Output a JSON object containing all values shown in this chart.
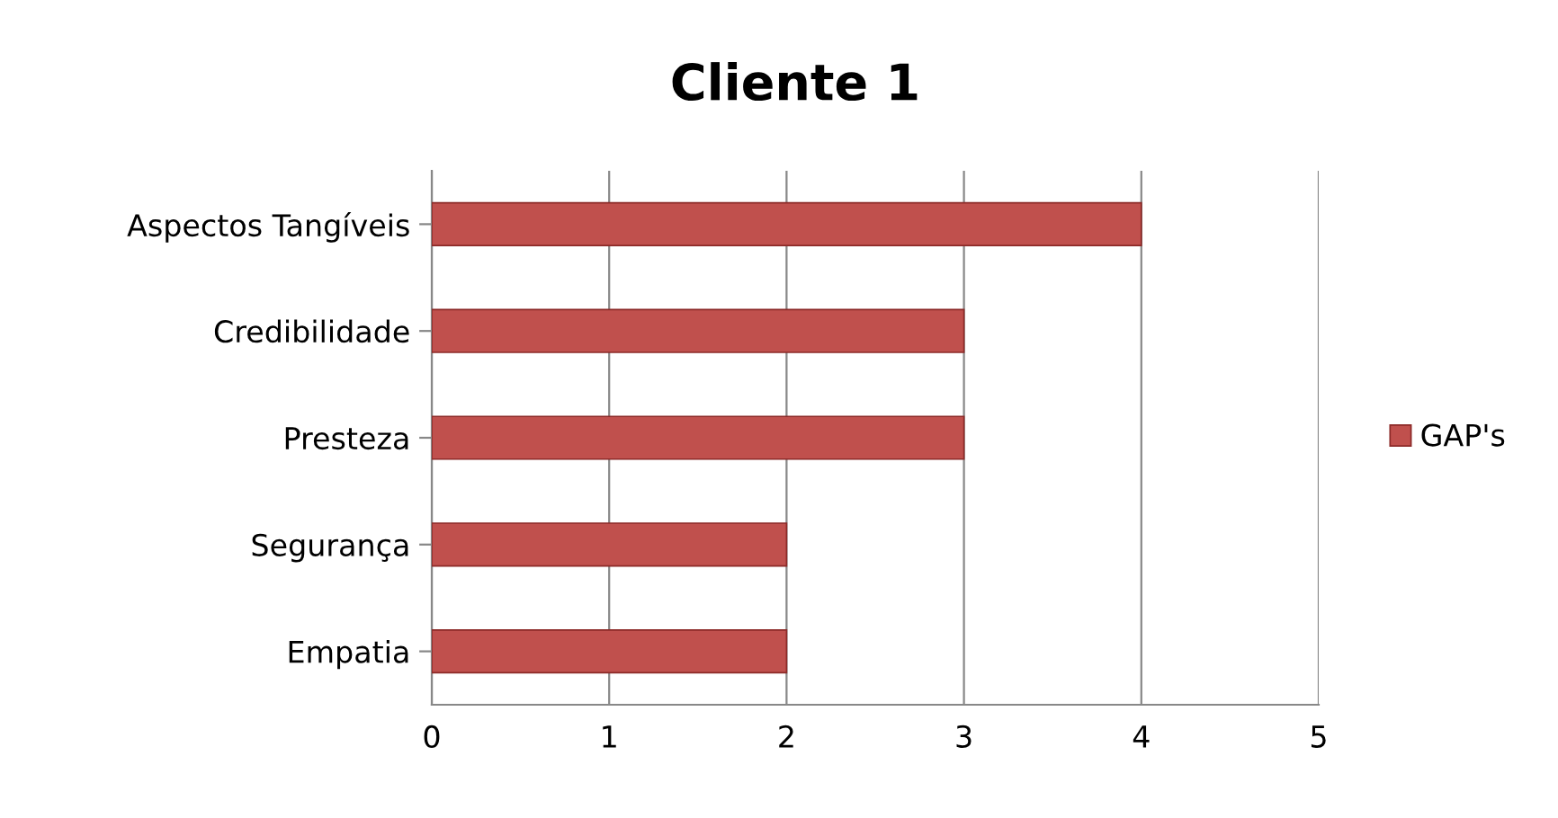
{
  "chart_data": {
    "type": "bar",
    "orientation": "horizontal",
    "title": "Cliente 1",
    "categories": [
      "Aspectos Tangíveis",
      "Credibilidade",
      "Presteza",
      "Segurança",
      "Empatia"
    ],
    "series": [
      {
        "name": "GAP's",
        "color": "#c0504d",
        "values": [
          4,
          3,
          3,
          2,
          2
        ]
      }
    ],
    "xlim": [
      0,
      5
    ],
    "xticks": [
      0,
      1,
      2,
      3,
      4,
      5
    ],
    "grid": "x",
    "legend": "right"
  }
}
